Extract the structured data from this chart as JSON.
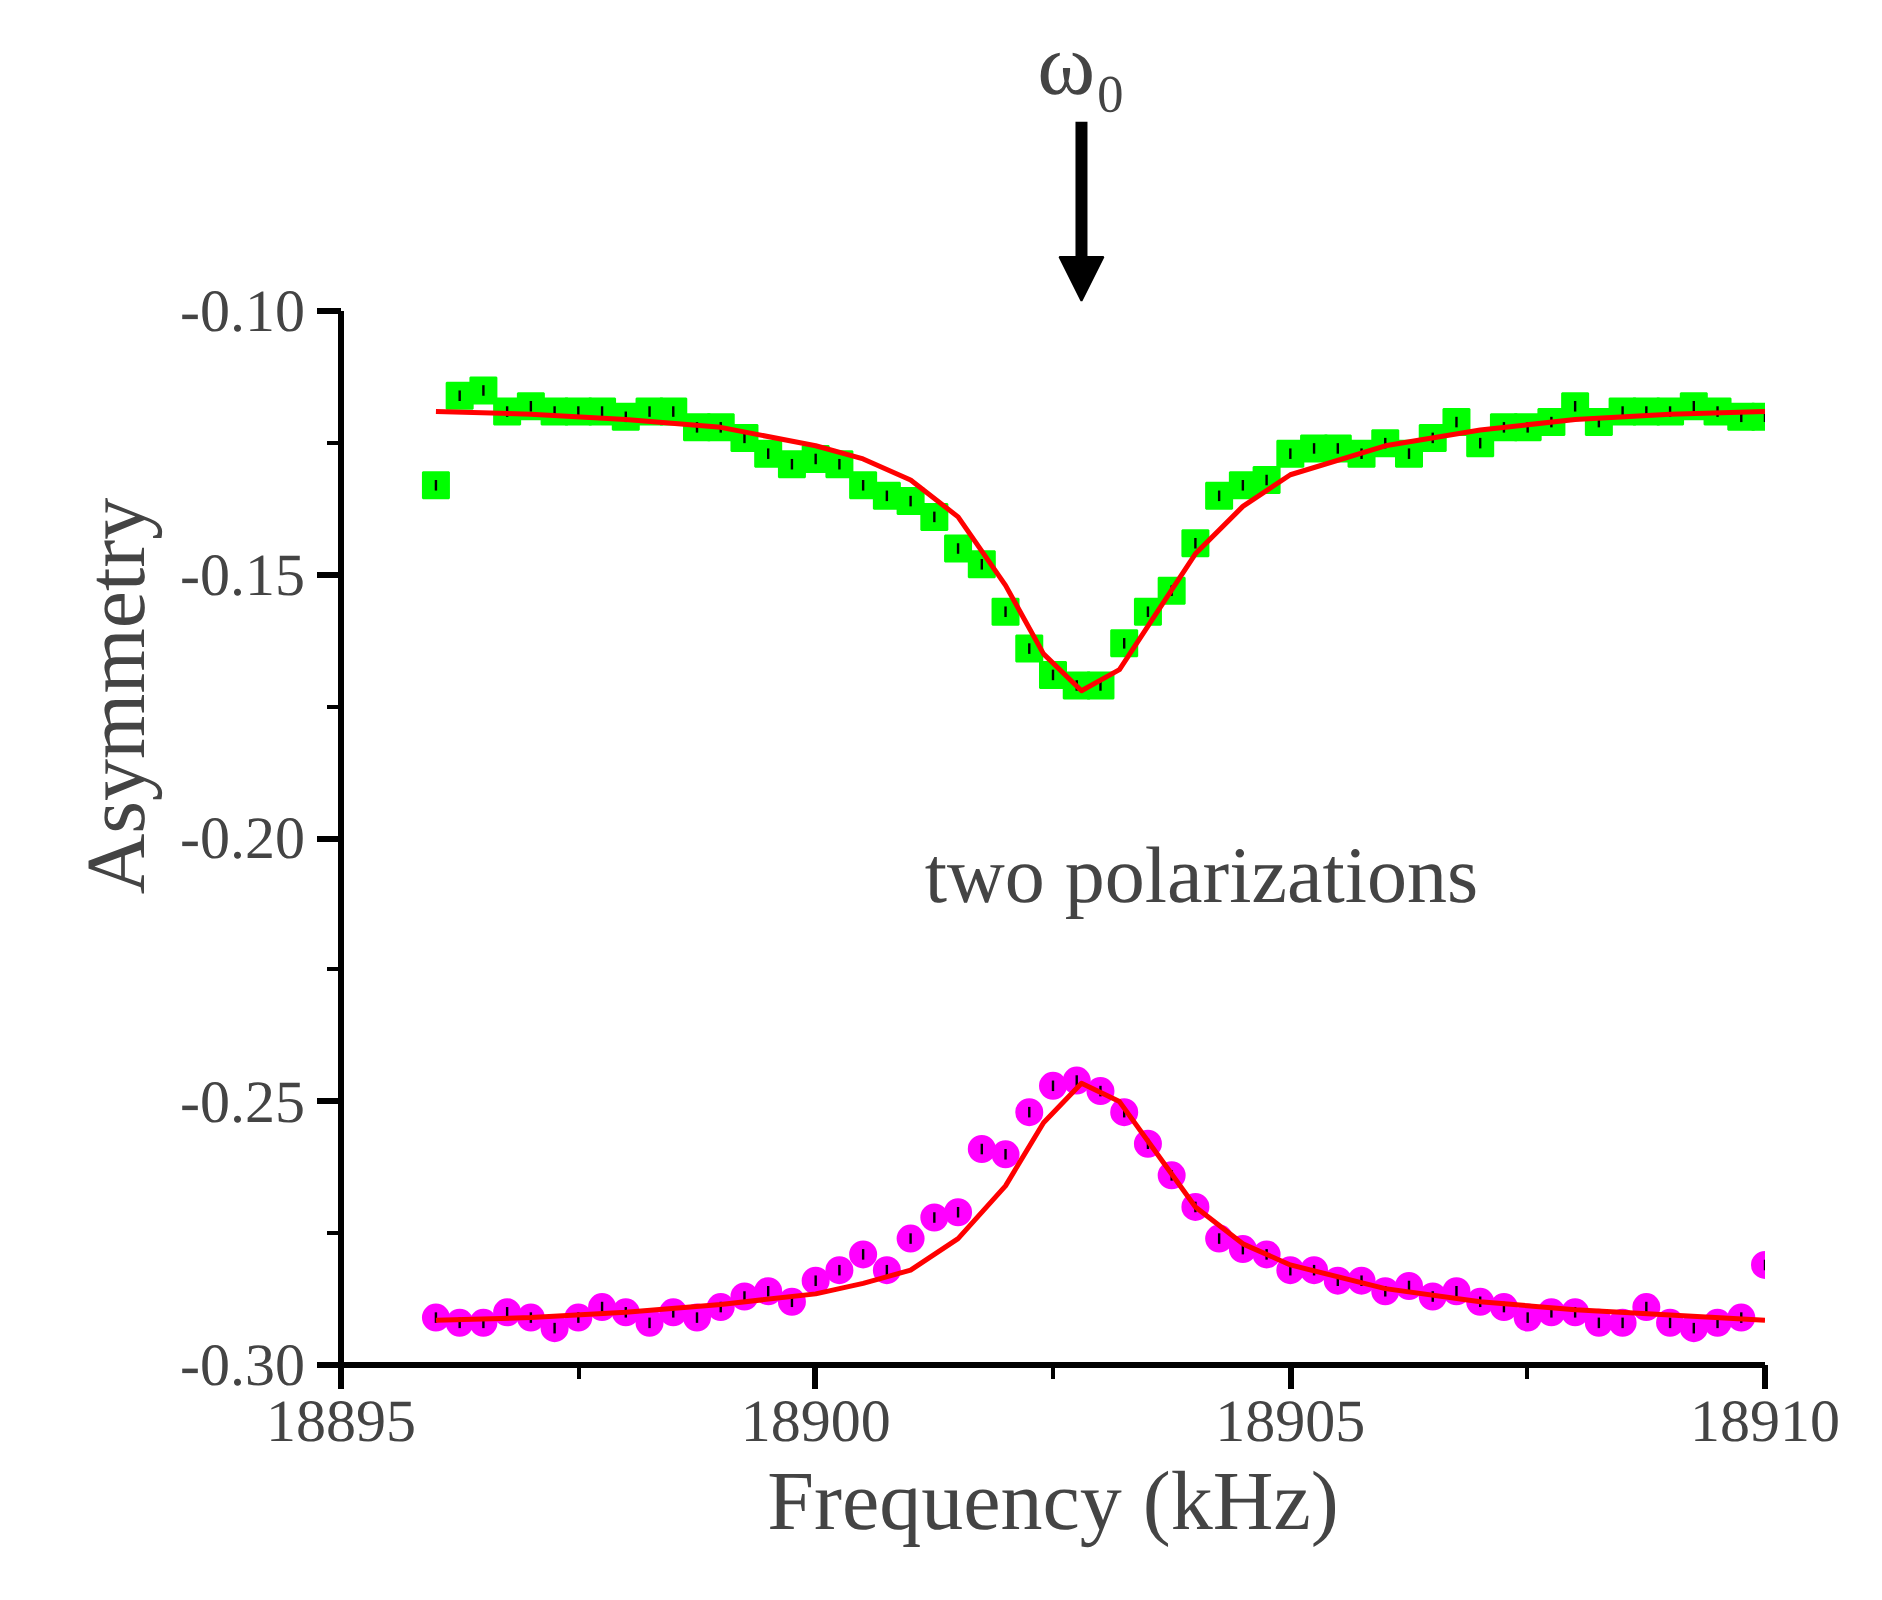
{
  "chart_data": {
    "type": "scatter",
    "xlabel": "Frequency (kHz)",
    "ylabel": "Asymmetry",
    "x": [
      18896,
      18896.25,
      18896.5,
      18896.75,
      18897,
      18897.25,
      18897.5,
      18897.75,
      18898,
      18898.25,
      18898.5,
      18898.75,
      18899,
      18899.25,
      18899.5,
      18899.75,
      18900,
      18900.25,
      18900.5,
      18900.75,
      18901,
      18901.25,
      18901.5,
      18901.75,
      18902,
      18902.25,
      18902.5,
      18902.75,
      18903,
      18903.25,
      18903.5,
      18903.75,
      18904,
      18904.25,
      18904.5,
      18904.75,
      18905,
      18905.25,
      18905.5,
      18905.75,
      18906,
      18906.25,
      18906.5,
      18906.75,
      18907,
      18907.25,
      18907.5,
      18907.75,
      18908,
      18908.25,
      18908.5,
      18908.75,
      18909,
      18909.25,
      18909.5,
      18909.75,
      18910
    ],
    "series": [
      {
        "marker": "square",
        "color": "#00ff00",
        "values": [
          -0.133,
          -0.116,
          -0.115,
          -0.119,
          -0.118,
          -0.119,
          -0.119,
          -0.119,
          -0.12,
          -0.119,
          -0.119,
          -0.122,
          -0.122,
          -0.124,
          -0.127,
          -0.129,
          -0.128,
          -0.129,
          -0.133,
          -0.135,
          -0.136,
          -0.139,
          -0.145,
          -0.148,
          -0.157,
          -0.164,
          -0.169,
          -0.171,
          -0.171,
          -0.163,
          -0.157,
          -0.153,
          -0.144,
          -0.135,
          -0.133,
          -0.132,
          -0.127,
          -0.126,
          -0.126,
          -0.127,
          -0.125,
          -0.127,
          -0.124,
          -0.121,
          -0.125,
          -0.122,
          -0.122,
          -0.121,
          -0.118,
          -0.121,
          -0.119,
          -0.119,
          -0.119,
          -0.118,
          -0.119,
          -0.12,
          -0.12
        ],
        "errors": [
          0.001,
          0.001,
          0.001,
          0.001,
          0.001,
          0.001,
          0.001,
          0.001,
          0.001,
          0.001,
          0.001,
          0.001,
          0.001,
          0.001,
          0.001,
          0.001,
          0.001,
          0.001,
          0.001,
          0.001,
          0.001,
          0.001,
          0.001,
          0.001,
          0.001,
          0.001,
          0.001,
          0.001,
          0.001,
          0.001,
          0.001,
          0.001,
          0.001,
          0.001,
          0.001,
          0.001,
          0.001,
          0.001,
          0.001,
          0.001,
          0.001,
          0.001,
          0.001,
          0.001,
          0.001,
          0.001,
          0.001,
          0.001,
          0.001,
          0.001,
          0.001,
          0.001,
          0.001,
          0.001,
          0.001,
          0.001,
          0.001
        ]
      },
      {
        "marker": "circle",
        "color": "#ff00ff",
        "values": [
          -0.291,
          -0.292,
          -0.292,
          -0.29,
          -0.291,
          -0.293,
          -0.291,
          -0.289,
          -0.29,
          -0.292,
          -0.29,
          -0.291,
          -0.289,
          -0.287,
          -0.286,
          -0.288,
          -0.284,
          -0.282,
          -0.279,
          -0.282,
          -0.276,
          -0.272,
          -0.271,
          -0.259,
          -0.26,
          -0.252,
          -0.247,
          -0.246,
          -0.248,
          -0.252,
          -0.258,
          -0.264,
          -0.27,
          -0.276,
          -0.278,
          -0.279,
          -0.282,
          -0.282,
          -0.284,
          -0.284,
          -0.286,
          -0.285,
          -0.287,
          -0.286,
          -0.288,
          -0.289,
          -0.291,
          -0.29,
          -0.29,
          -0.292,
          -0.292,
          -0.289,
          -0.292,
          -0.293,
          -0.292,
          -0.291,
          -0.281
        ],
        "errors": [
          0.001,
          0.001,
          0.001,
          0.001,
          0.001,
          0.001,
          0.001,
          0.001,
          0.001,
          0.001,
          0.001,
          0.001,
          0.001,
          0.001,
          0.001,
          0.001,
          0.001,
          0.001,
          0.001,
          0.001,
          0.001,
          0.001,
          0.001,
          0.001,
          0.001,
          0.001,
          0.001,
          0.001,
          0.001,
          0.001,
          0.001,
          0.001,
          0.001,
          0.001,
          0.001,
          0.001,
          0.001,
          0.001,
          0.001,
          0.001,
          0.001,
          0.001,
          0.001,
          0.001,
          0.001,
          0.001,
          0.001,
          0.001,
          0.001,
          0.001,
          0.001,
          0.001,
          0.001,
          0.001,
          0.001,
          0.001,
          0.001
        ]
      },
      {
        "type": "line",
        "color": "#ff0000",
        "line_style": "solid",
        "x": [
          18896,
          18897,
          18898,
          18899,
          18900,
          18900.5,
          18901,
          18901.5,
          18902,
          18902.4,
          18902.8,
          18903.2,
          18903.6,
          18904,
          18904.5,
          18905,
          18906,
          18907,
          18908,
          18909,
          18910
        ],
        "values": [
          -0.119,
          -0.1195,
          -0.1205,
          -0.122,
          -0.1255,
          -0.128,
          -0.132,
          -0.139,
          -0.152,
          -0.165,
          -0.172,
          -0.168,
          -0.157,
          -0.146,
          -0.137,
          -0.131,
          -0.1255,
          -0.1225,
          -0.1205,
          -0.1195,
          -0.119
        ]
      },
      {
        "type": "line",
        "color": "#ff0000",
        "line_style": "solid",
        "x": [
          18896,
          18897,
          18898,
          18899,
          18900,
          18900.5,
          18901,
          18901.5,
          18902,
          18902.4,
          18902.8,
          18903.2,
          18903.6,
          18904,
          18904.5,
          18905,
          18906,
          18907,
          18908,
          18909,
          18910
        ],
        "values": [
          -0.2915,
          -0.291,
          -0.29,
          -0.2885,
          -0.2865,
          -0.2845,
          -0.282,
          -0.276,
          -0.266,
          -0.254,
          -0.2465,
          -0.25,
          -0.26,
          -0.27,
          -0.277,
          -0.281,
          -0.2855,
          -0.288,
          -0.2895,
          -0.2905,
          -0.2915
        ]
      }
    ],
    "xlim": [
      18895,
      18910
    ],
    "xticks": [
      18895,
      18900,
      18905,
      18910
    ],
    "ylim": [
      -0.3,
      -0.1
    ],
    "yticks": [
      {
        "value": -0.3,
        "label": "-0.30"
      },
      {
        "value": -0.25,
        "label": "-0.25"
      },
      {
        "value": -0.2,
        "label": "-0.20"
      },
      {
        "value": -0.15,
        "label": "-0.15"
      },
      {
        "value": -0.1,
        "label": "-0.10"
      }
    ],
    "grid": false,
    "annotations": [
      "ω₀",
      "two polarizations"
    ]
  }
}
